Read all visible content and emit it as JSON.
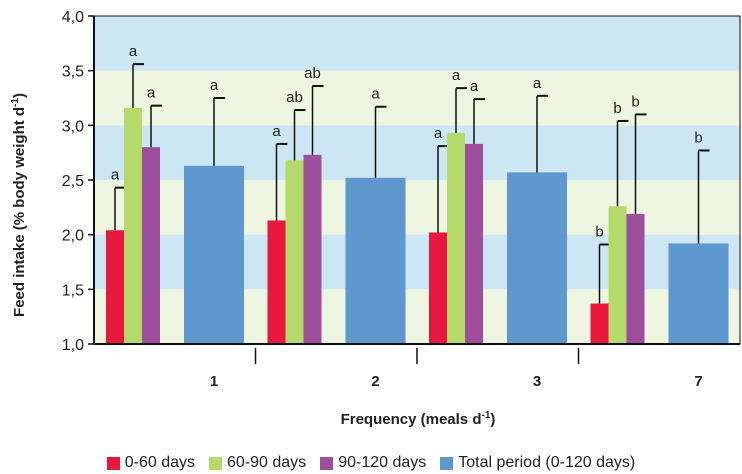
{
  "chart_data": {
    "type": "bar",
    "xlabel": "Frequency (meals d",
    "xlabel_sup": "-1",
    "xlabel_end": ")",
    "ylabel": "Feed intake (% body weight d",
    "ylabel_sup": "-1",
    "ylabel_end": ")",
    "ylim": [
      1.0,
      4.0
    ],
    "yticks": [
      "1,0",
      "1,5",
      "2,0",
      "2,5",
      "3,0",
      "3,5",
      "4,0"
    ],
    "ytick_values": [
      1.0,
      1.5,
      2.0,
      2.5,
      3.0,
      3.5,
      4.0
    ],
    "grid": "horizontal bands",
    "band_colors": [
      "#eef5e0",
      "#cde6f4"
    ],
    "categories": [
      "1",
      "2",
      "3",
      "7"
    ],
    "series": [
      {
        "name": "0-60 days",
        "color": "#e8173d",
        "values": [
          2.04,
          2.13,
          2.02,
          1.37
        ],
        "errors": [
          0.39,
          0.7,
          0.79,
          0.54
        ],
        "labels": [
          "a",
          "a",
          "a",
          "b"
        ]
      },
      {
        "name": "60-90 days",
        "color": "#b5d96a",
        "values": [
          3.16,
          2.68,
          2.93,
          2.26
        ],
        "errors": [
          0.4,
          0.46,
          0.41,
          0.78
        ],
        "labels": [
          "a",
          "ab",
          "a",
          "b"
        ]
      },
      {
        "name": "90-120 days",
        "color": "#9d4f9e",
        "values": [
          2.8,
          2.73,
          2.83,
          2.19
        ],
        "errors": [
          0.38,
          0.63,
          0.41,
          0.91
        ],
        "labels": [
          "a",
          "ab",
          "a",
          "b"
        ]
      },
      {
        "name": "Total period (0-120 days)",
        "color": "#5e98cf",
        "values": [
          2.63,
          2.52,
          2.57,
          1.92
        ],
        "errors": [
          0.62,
          0.65,
          0.7,
          0.85
        ],
        "labels": [
          "a",
          "a",
          "a",
          "b"
        ]
      }
    ]
  }
}
